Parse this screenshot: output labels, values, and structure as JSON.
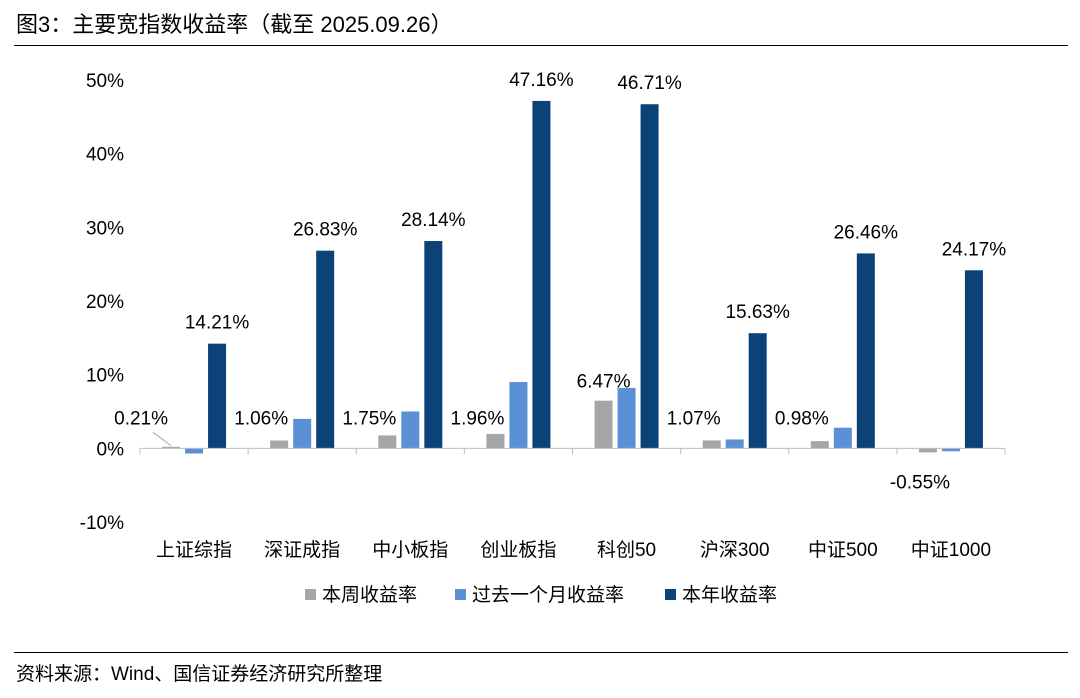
{
  "header": {
    "title": "图3：主要宽指数收益率（截至 2025.09.26）"
  },
  "footer": {
    "source": "资料来源：Wind、国信证券经济研究所整理"
  },
  "chart_data": {
    "type": "bar",
    "title": "",
    "xlabel": "",
    "ylabel": "",
    "ylim": [
      -10,
      50
    ],
    "yticks": [
      "-10%",
      "0%",
      "10%",
      "20%",
      "30%",
      "40%",
      "50%"
    ],
    "ytick_values": [
      -10,
      0,
      10,
      20,
      30,
      40,
      50
    ],
    "grid": false,
    "legend_position": "bottom",
    "categories": [
      "上证综指",
      "深证成指",
      "中小板指",
      "创业板指",
      "科创50",
      "沪深300",
      "中证500",
      "中证1000"
    ],
    "series": [
      {
        "name": "本周收益率",
        "color": "#a6a6a6",
        "values": [
          0.21,
          1.06,
          1.75,
          1.96,
          6.47,
          1.07,
          0.98,
          -0.55
        ],
        "labels": [
          "0.21%",
          "1.06%",
          "1.75%",
          "1.96%",
          "6.47%",
          "1.07%",
          "0.98%",
          "-0.55%"
        ]
      },
      {
        "name": "过去一个月收益率",
        "color": "#5b8fd6",
        "values": [
          -0.7,
          4.0,
          5.0,
          9.0,
          8.2,
          1.2,
          2.8,
          -0.4
        ],
        "labels": [
          "",
          "",
          "",
          "",
          "",
          "",
          "",
          ""
        ]
      },
      {
        "name": "本年收益率",
        "color": "#0b4277",
        "values": [
          14.21,
          26.83,
          28.14,
          47.16,
          46.71,
          15.63,
          26.46,
          24.17
        ],
        "labels": [
          "14.21%",
          "26.83%",
          "28.14%",
          "47.16%",
          "46.71%",
          "15.63%",
          "26.46%",
          "24.17%"
        ]
      }
    ]
  }
}
